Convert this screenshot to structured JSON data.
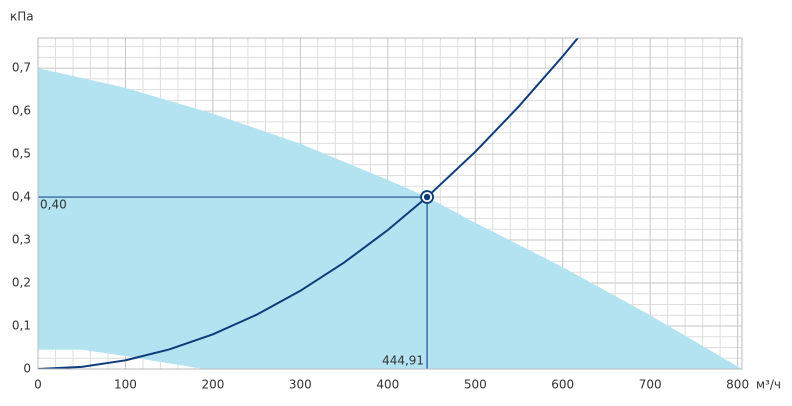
{
  "chart_data": {
    "type": "fan-curve",
    "y_label": "кПа",
    "x_label": "м³/ч",
    "xlim": [
      0,
      805
    ],
    "ylim": [
      0,
      0.77
    ],
    "xticks": [
      0,
      100,
      200,
      300,
      400,
      500,
      600,
      700,
      800
    ],
    "yticks": [
      0,
      {
        "value": 0.1,
        "label": "0,1"
      },
      {
        "value": 0.2,
        "label": "0,2"
      },
      {
        "value": 0.3,
        "label": "0,3"
      },
      {
        "value": 0.4,
        "label": "0,4"
      },
      {
        "value": 0.5,
        "label": "0,5"
      },
      {
        "value": 0.6,
        "label": "0,6"
      },
      {
        "value": 0.7,
        "label": "0,7"
      }
    ],
    "x_minor_ticks": [
      20,
      40,
      60,
      80,
      120,
      140,
      160,
      180,
      220,
      240,
      260,
      280,
      320,
      340,
      360,
      380,
      420,
      440,
      460,
      480,
      520,
      540,
      560,
      580,
      620,
      640,
      660,
      680,
      720,
      740,
      760,
      780,
      800
    ],
    "y_minor_ticks": [
      0.025,
      0.05,
      0.075,
      0.125,
      0.15,
      0.175,
      0.225,
      0.25,
      0.275,
      0.325,
      0.35,
      0.375,
      0.425,
      0.45,
      0.475,
      0.525,
      0.55,
      0.575,
      0.625,
      0.65,
      0.675,
      0.725,
      0.75
    ],
    "grid": true,
    "range_area": {
      "color": "#b3e3f1",
      "upper": {
        "x": [
          0,
          100,
          200,
          300,
          400,
          444.91,
          500,
          600,
          700,
          805
        ],
        "y": [
          0.7,
          0.654,
          0.594,
          0.524,
          0.44,
          0.4,
          0.34,
          0.237,
          0.125,
          0
        ]
      },
      "lower": {
        "x": [
          0,
          50,
          100,
          150,
          190
        ],
        "y": [
          0.045,
          0.045,
          0.03,
          0.013,
          0
        ]
      }
    },
    "system_curve": {
      "color": "#0d3c7a",
      "x": [
        0,
        50,
        100,
        150,
        200,
        250,
        300,
        350,
        400,
        444.91,
        500,
        550,
        600,
        618
      ],
      "y": [
        0,
        0.00505,
        0.0202,
        0.0455,
        0.0808,
        0.1263,
        0.1819,
        0.2475,
        0.3233,
        0.4,
        0.5052,
        0.6113,
        0.7275,
        0.7718
      ]
    },
    "operating_point": {
      "x": 444.91,
      "y": 0.4,
      "value_labels": {
        "x": "444,91",
        "y": "0,40"
      },
      "color": "#1f4e8c"
    }
  }
}
